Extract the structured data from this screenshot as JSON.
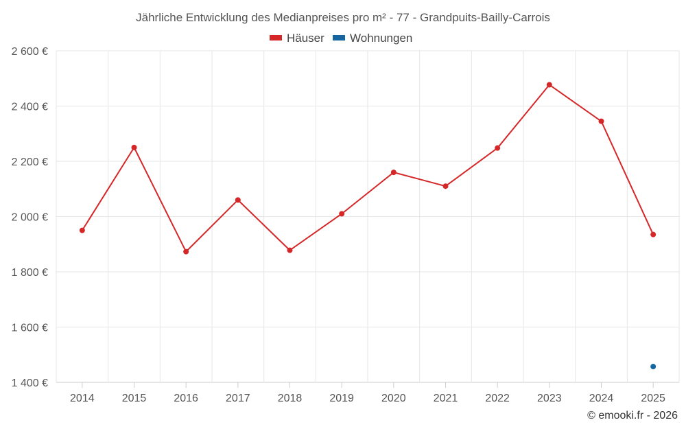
{
  "chart_data": {
    "type": "line",
    "title": "Jährliche Entwicklung des Medianpreises pro m² - 77 - Grandpuits-Bailly-Carrois",
    "categories": [
      "2014",
      "2015",
      "2016",
      "2017",
      "2018",
      "2019",
      "2020",
      "2021",
      "2022",
      "2023",
      "2024",
      "2025"
    ],
    "ylim": [
      1400,
      2600
    ],
    "yticks": [
      1400,
      1600,
      1800,
      2000,
      2200,
      2400,
      2600
    ],
    "ytick_labels": [
      "1 400 €",
      "1 600 €",
      "1 800 €",
      "2 000 €",
      "2 200 €",
      "2 400 €",
      "2 600 €"
    ],
    "series": [
      {
        "name": "Häuser",
        "color": "#d62728",
        "values": [
          1950,
          2250,
          1873,
          2060,
          1878,
          2010,
          2160,
          2110,
          2248,
          2477,
          2345,
          1935
        ]
      },
      {
        "name": "Wohnungen",
        "color": "#1565a0",
        "values": [
          null,
          null,
          null,
          null,
          null,
          null,
          null,
          null,
          null,
          null,
          null,
          1457
        ]
      }
    ],
    "legend_position": "top-center",
    "grid": true
  },
  "credit": "© emooki.fr - 2026"
}
